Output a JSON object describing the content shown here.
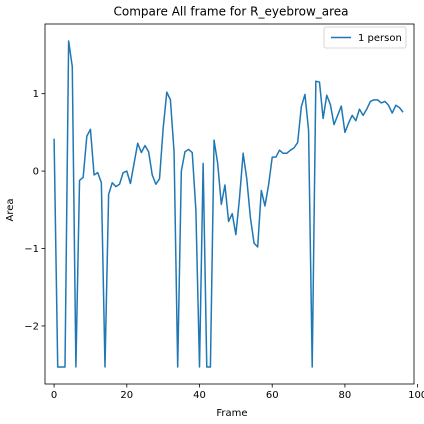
{
  "chart_data": {
    "type": "line",
    "title": "Compare All frame for R_eyebrow_area",
    "xlabel": "Frame",
    "ylabel": "Area",
    "xlim": [
      -2.5,
      99
    ],
    "ylim": [
      -2.75,
      1.9
    ],
    "xticks": [
      0,
      20,
      40,
      60,
      80,
      100
    ],
    "yticks": [
      -2,
      -1,
      0,
      1
    ],
    "xtick_labels": [
      "0",
      "20",
      "40",
      "60",
      "80",
      "100"
    ],
    "ytick_labels": [
      "−2",
      "−1",
      "0",
      "1"
    ],
    "grid": false,
    "legend_position": "top-right",
    "series": [
      {
        "name": "1 person",
        "color": "#1f77b4",
        "x": [
          0,
          1,
          2,
          3,
          4,
          5,
          6,
          7,
          8,
          9,
          10,
          11,
          12,
          13,
          14,
          15,
          16,
          17,
          18,
          19,
          20,
          21,
          22,
          23,
          24,
          25,
          26,
          27,
          28,
          29,
          30,
          31,
          32,
          33,
          34,
          35,
          36,
          37,
          38,
          39,
          40,
          41,
          42,
          43,
          44,
          45,
          46,
          47,
          48,
          49,
          50,
          51,
          52,
          53,
          54,
          55,
          56,
          57,
          58,
          59,
          60,
          61,
          62,
          63,
          64,
          65,
          66,
          67,
          68,
          69,
          70,
          71,
          72,
          73,
          74,
          75,
          76,
          77,
          78,
          79,
          80,
          81,
          82,
          83,
          84,
          85,
          86,
          87,
          88,
          89,
          90,
          91,
          92,
          93,
          94,
          95,
          96
        ],
        "values": [
          0.42,
          -2.53,
          -2.53,
          -2.53,
          1.68,
          1.35,
          -2.53,
          -0.12,
          -0.08,
          0.45,
          0.54,
          -0.05,
          -0.02,
          -0.15,
          -2.53,
          -0.3,
          -0.15,
          -0.2,
          -0.17,
          -0.02,
          0.0,
          -0.16,
          0.1,
          0.36,
          0.24,
          0.33,
          0.25,
          -0.05,
          -0.17,
          -0.1,
          0.55,
          1.02,
          0.92,
          0.25,
          -2.53,
          0.0,
          0.25,
          0.28,
          0.24,
          -0.5,
          -2.53,
          0.1,
          -2.53,
          -2.53,
          0.4,
          0.1,
          -0.43,
          -0.18,
          -0.65,
          -0.55,
          -0.82,
          -0.35,
          0.23,
          -0.1,
          -0.6,
          -0.93,
          -0.98,
          -0.25,
          -0.45,
          -0.18,
          0.18,
          0.18,
          0.27,
          0.23,
          0.23,
          0.27,
          0.3,
          0.37,
          0.83,
          0.99,
          0.53,
          -2.53,
          1.16,
          1.15,
          0.68,
          0.98,
          0.86,
          0.6,
          0.72,
          0.84,
          0.5,
          0.62,
          0.72,
          0.65,
          0.8,
          0.72,
          0.8,
          0.9,
          0.92,
          0.92,
          0.88,
          0.9,
          0.85,
          0.75,
          0.85,
          0.82,
          0.76
        ]
      }
    ]
  }
}
